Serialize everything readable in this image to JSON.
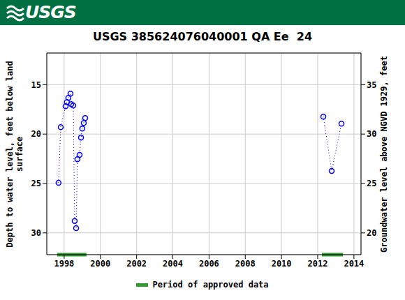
{
  "header": {
    "text": "USGS"
  },
  "chart_data": {
    "type": "line",
    "title": "USGS 385624076040001 QA Ee  24",
    "y_label": "Depth to water level, feet below land surface",
    "y2_label": "Groundwater level above NGVD 1929, feet",
    "x": [
      1997.69,
      1997.81,
      1998.08,
      1998.15,
      1998.23,
      1998.35,
      1998.39,
      1998.5,
      1998.58,
      1998.66,
      1998.73,
      1998.85,
      1998.93,
      1999.0,
      1999.08,
      1999.16,
      null,
      2012.31,
      2012.77,
      2013.31
    ],
    "values": [
      24.93,
      19.3,
      17.18,
      16.76,
      16.34,
      15.92,
      16.97,
      17.11,
      28.8,
      29.51,
      22.54,
      22.11,
      20.35,
      19.44,
      18.87,
      18.38,
      null,
      18.24,
      23.73,
      18.94
    ],
    "color": "#0000ff",
    "marker": "circle",
    "line_style": "dotted",
    "xlim": [
      1997.04,
      2014.39
    ],
    "xticks": [
      1998,
      2000,
      2002,
      2004,
      2006,
      2008,
      2010,
      2012,
      2014
    ],
    "ylim": [
      32.2,
      11.8
    ],
    "yticks": [
      15,
      20,
      25,
      30
    ],
    "y2lim": [
      17.8,
      38.2
    ],
    "y2ticks": [
      20,
      25,
      30,
      35
    ],
    "grid": true,
    "approved_periods": [
      [
        1997.61,
        1999.23
      ],
      [
        2012.23,
        2013.39
      ]
    ],
    "approved_label": "Period of approved data",
    "approved_color": "#339933",
    "legend": "bottom"
  }
}
